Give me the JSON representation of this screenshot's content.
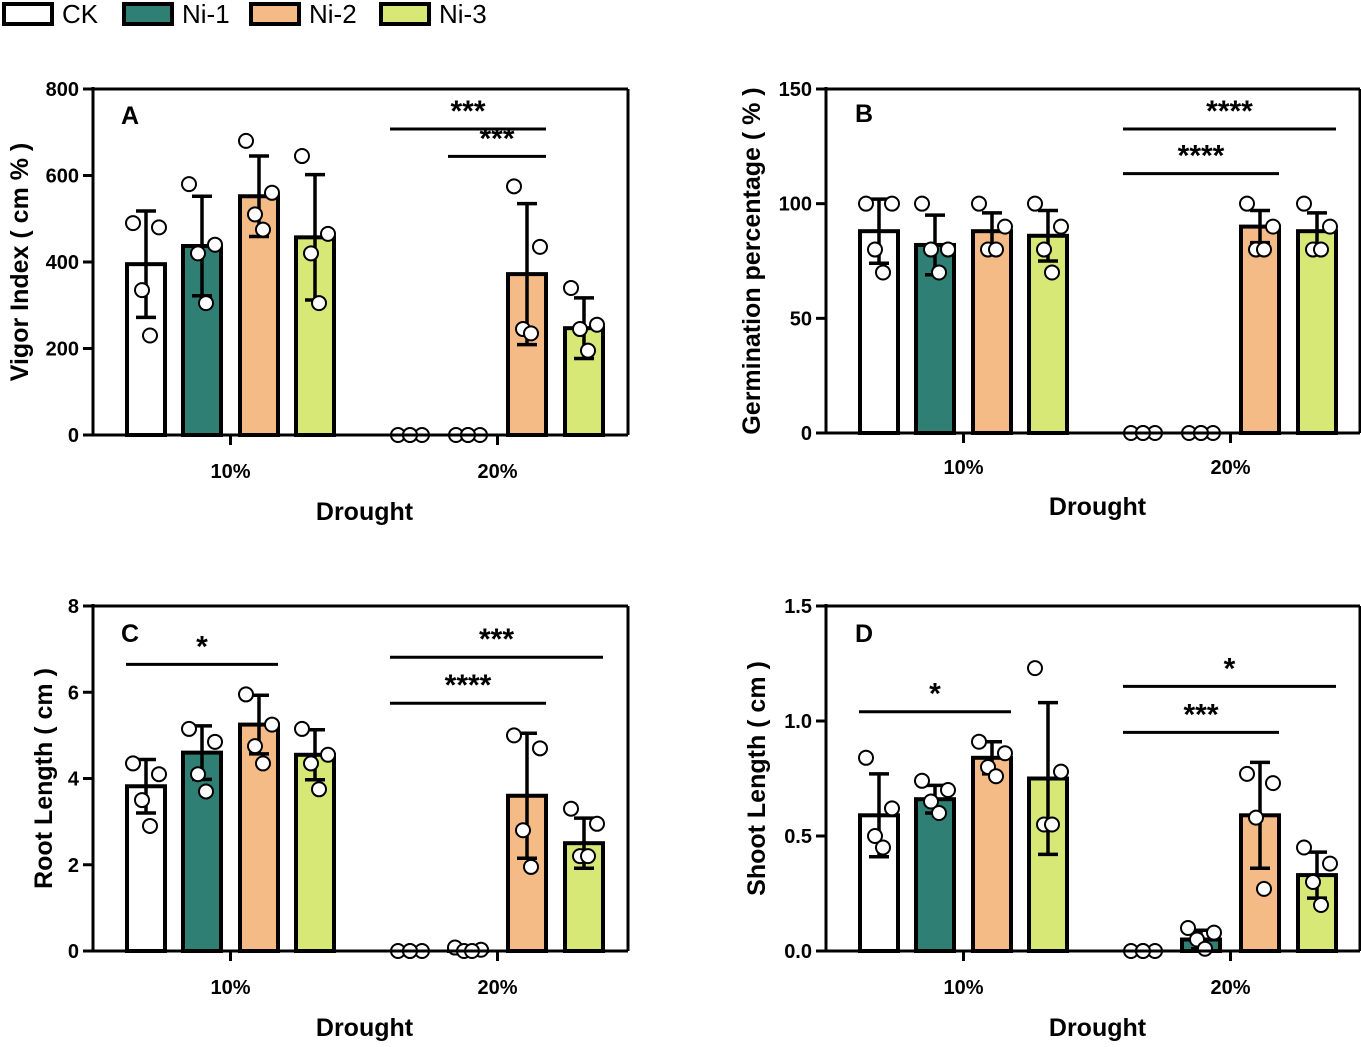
{
  "legend": [
    {
      "name": "CK",
      "color": "#ffffff"
    },
    {
      "name": "Ni-1",
      "color": "#2f7f74"
    },
    {
      "name": "Ni-2",
      "color": "#f5bb87"
    },
    {
      "name": "Ni-3",
      "color": "#d7e877"
    }
  ],
  "chart_data": [
    {
      "type": "bar",
      "panel": "A",
      "ylabel": "Vigor Index ( cm % )",
      "xlabel": "Drought",
      "categories": [
        "10%",
        "20%"
      ],
      "ylim": [
        0,
        800
      ],
      "yticks": [
        0,
        200,
        400,
        600,
        800
      ],
      "series": [
        {
          "name": "CK",
          "values": [
            395,
            0
          ],
          "errors": [
            123,
            0
          ],
          "points": [
            [
              490,
              480,
              335,
              230
            ],
            [
              0,
              0,
              0,
              0
            ]
          ]
        },
        {
          "name": "Ni-1",
          "values": [
            437,
            0
          ],
          "errors": [
            115,
            0
          ],
          "points": [
            [
              580,
              440,
              420,
              305
            ],
            [
              0,
              0,
              0,
              0
            ]
          ]
        },
        {
          "name": "Ni-2",
          "values": [
            552,
            372
          ],
          "errors": [
            93,
            163
          ],
          "points": [
            [
              680,
              560,
              510,
              475
            ],
            [
              575,
              435,
              245,
              235
            ]
          ]
        },
        {
          "name": "Ni-3",
          "values": [
            457,
            247
          ],
          "errors": [
            145,
            70
          ],
          "points": [
            [
              645,
              465,
              420,
              305
            ],
            [
              340,
              255,
              245,
              195
            ]
          ]
        }
      ],
      "significance": [
        {
          "group": "20%",
          "from": "CK",
          "to": "Ni-2",
          "label": "***",
          "level": 1
        },
        {
          "group": "20%",
          "from": "Ni-1",
          "to": "Ni-2",
          "label": "***",
          "level": 0
        }
      ]
    },
    {
      "type": "bar",
      "panel": "B",
      "ylabel": "Germination percentage ( % )",
      "xlabel": "Drought",
      "categories": [
        "10%",
        "20%"
      ],
      "ylim": [
        0,
        150
      ],
      "yticks": [
        0,
        50,
        100,
        150
      ],
      "series": [
        {
          "name": "CK",
          "values": [
            88,
            0
          ],
          "errors": [
            14,
            0
          ],
          "points": [
            [
              100,
              100,
              80,
              70
            ],
            [
              0,
              0,
              0,
              0
            ]
          ]
        },
        {
          "name": "Ni-1",
          "values": [
            82,
            0
          ],
          "errors": [
            13,
            0
          ],
          "points": [
            [
              100,
              80,
              80,
              70
            ],
            [
              0,
              0,
              0,
              0
            ]
          ]
        },
        {
          "name": "Ni-2",
          "values": [
            88,
            90
          ],
          "errors": [
            8,
            7
          ],
          "points": [
            [
              100,
              90,
              80,
              80
            ],
            [
              100,
              90,
              80,
              80
            ]
          ]
        },
        {
          "name": "Ni-3",
          "values": [
            86,
            88
          ],
          "errors": [
            11,
            8
          ],
          "points": [
            [
              100,
              90,
              80,
              70
            ],
            [
              100,
              90,
              80,
              80
            ]
          ]
        }
      ],
      "significance": [
        {
          "group": "20%",
          "from": "CK",
          "to": "Ni-3",
          "label": "****",
          "level": 1
        },
        {
          "group": "20%",
          "from": "CK",
          "to": "Ni-2",
          "label": "****",
          "level": 0
        }
      ]
    },
    {
      "type": "bar",
      "panel": "C",
      "ylabel": "Root Length ( cm )",
      "xlabel": "Drought",
      "categories": [
        "10%",
        "20%"
      ],
      "ylim": [
        0,
        8
      ],
      "yticks": [
        0,
        2,
        4,
        6,
        8
      ],
      "series": [
        {
          "name": "CK",
          "values": [
            3.82,
            0
          ],
          "errors": [
            0.62,
            0
          ],
          "points": [
            [
              4.35,
              4.1,
              3.5,
              2.9
            ],
            [
              0,
              0,
              0,
              0
            ]
          ]
        },
        {
          "name": "Ni-1",
          "values": [
            4.6,
            0.02
          ],
          "errors": [
            0.62,
            0
          ],
          "points": [
            [
              5.15,
              4.85,
              4.1,
              3.7
            ],
            [
              0.08,
              0.03,
              0,
              0
            ]
          ]
        },
        {
          "name": "Ni-2",
          "values": [
            5.25,
            3.6
          ],
          "errors": [
            0.68,
            1.45
          ],
          "points": [
            [
              5.95,
              5.25,
              4.75,
              4.35
            ],
            [
              5.0,
              4.7,
              2.8,
              1.95
            ]
          ]
        },
        {
          "name": "Ni-3",
          "values": [
            4.55,
            2.5
          ],
          "errors": [
            0.58,
            0.58
          ],
          "points": [
            [
              5.15,
              4.55,
              4.35,
              3.75
            ],
            [
              3.3,
              2.95,
              2.2,
              2.2
            ]
          ]
        }
      ],
      "significance": [
        {
          "group": "10%",
          "from": "CK",
          "to": "Ni-2",
          "label": "*",
          "level": 0
        },
        {
          "group": "20%",
          "from": "CK",
          "to": "Ni-3",
          "label": "***",
          "level": 1
        },
        {
          "group": "20%",
          "from": "CK",
          "to": "Ni-2",
          "label": "****",
          "level": 0
        }
      ]
    },
    {
      "type": "bar",
      "panel": "D",
      "ylabel": "Shoot Length ( cm )",
      "xlabel": "Drought",
      "categories": [
        "10%",
        "20%"
      ],
      "ylim": [
        0,
        1.5
      ],
      "yticks": [
        "0.0",
        "0.5",
        "1.0",
        "1.5"
      ],
      "series": [
        {
          "name": "CK",
          "values": [
            0.59,
            0
          ],
          "errors": [
            0.18,
            0
          ],
          "points": [
            [
              0.84,
              0.62,
              0.5,
              0.45
            ],
            [
              0,
              0,
              0,
              0
            ]
          ]
        },
        {
          "name": "Ni-1",
          "values": [
            0.66,
            0.05
          ],
          "errors": [
            0.06,
            0.04
          ],
          "points": [
            [
              0.74,
              0.7,
              0.65,
              0.6
            ],
            [
              0.1,
              0.08,
              0.05,
              0.01
            ]
          ]
        },
        {
          "name": "Ni-2",
          "values": [
            0.84,
            0.59
          ],
          "errors": [
            0.07,
            0.23
          ],
          "points": [
            [
              0.91,
              0.86,
              0.8,
              0.76
            ],
            [
              0.77,
              0.73,
              0.58,
              0.27
            ]
          ]
        },
        {
          "name": "Ni-3",
          "values": [
            0.75,
            0.33
          ],
          "errors": [
            0.33,
            0.1
          ],
          "points": [
            [
              1.23,
              0.78,
              0.55,
              0.55
            ],
            [
              0.45,
              0.38,
              0.3,
              0.2
            ]
          ]
        }
      ],
      "significance": [
        {
          "group": "10%",
          "from": "CK",
          "to": "Ni-2",
          "label": "*",
          "level": 0
        },
        {
          "group": "20%",
          "from": "CK",
          "to": "Ni-3",
          "label": "*",
          "level": 1
        },
        {
          "group": "20%",
          "from": "CK",
          "to": "Ni-2",
          "label": "***",
          "level": 0
        }
      ]
    }
  ]
}
